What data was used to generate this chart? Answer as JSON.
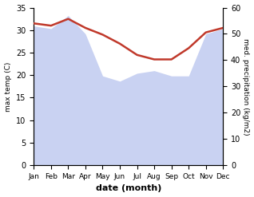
{
  "months": [
    "Jan",
    "Feb",
    "Mar",
    "Apr",
    "May",
    "Jun",
    "Jul",
    "Aug",
    "Sep",
    "Oct",
    "Nov",
    "Dec"
  ],
  "temp": [
    31.5,
    31.0,
    32.5,
    30.5,
    29.0,
    27.0,
    24.5,
    23.5,
    23.5,
    26.0,
    29.5,
    30.5
  ],
  "precip": [
    53,
    52,
    57,
    50,
    34,
    32,
    35,
    36,
    34,
    34,
    50,
    52
  ],
  "temp_color": "#c0392b",
  "precip_fill_color": "#b8c4ee",
  "precip_alpha": 0.75,
  "temp_ylim": [
    0,
    35
  ],
  "precip_ylim": [
    0,
    60
  ],
  "temp_yticks": [
    0,
    5,
    10,
    15,
    20,
    25,
    30,
    35
  ],
  "precip_yticks": [
    0,
    10,
    20,
    30,
    40,
    50,
    60
  ],
  "xlabel": "date (month)",
  "ylabel_left": "max temp (C)",
  "ylabel_right": "med. precipitation (kg/m2)",
  "background_color": "#ffffff"
}
